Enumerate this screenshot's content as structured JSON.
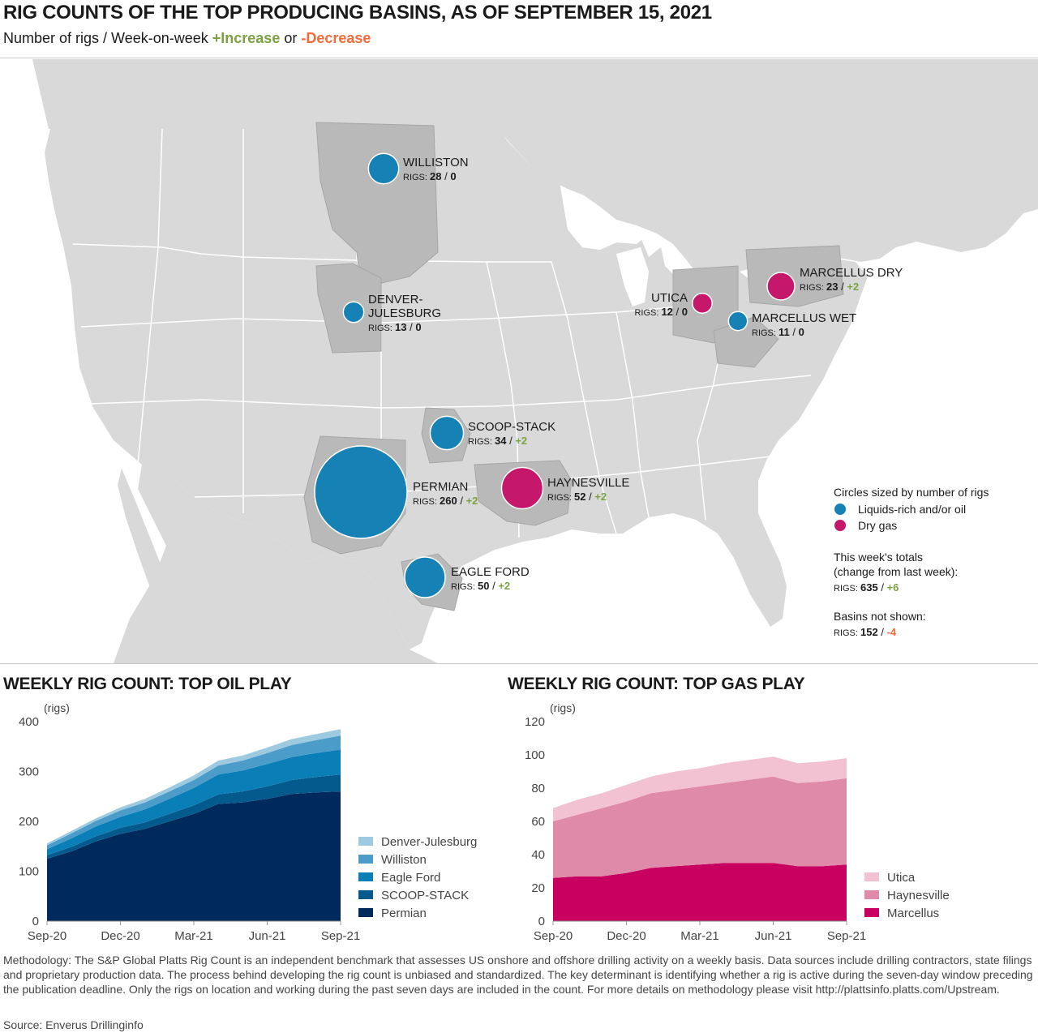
{
  "header": {
    "title": "RIG COUNTS OF THE TOP PRODUCING BASINS, AS OF SEPTEMBER 15, 2021",
    "subtitle_prefix": "Number of rigs / Week-on-week ",
    "subtitle_increase": "+Increase",
    "subtitle_or": " or ",
    "subtitle_decrease": "-Decrease"
  },
  "colors": {
    "liquids": "#1681b5",
    "dry_gas": "#c6186a",
    "increase": "#7ba23f",
    "decrease": "#f26b3a",
    "land": "#d9d9d9",
    "basin": "#b9b9b9"
  },
  "map": {
    "basins": [
      {
        "name": "WILLISTON",
        "line2": "",
        "rigs": "28",
        "change": "0",
        "type": "liquids"
      },
      {
        "name": "DENVER-",
        "line2": "JULESBURG",
        "rigs": "13",
        "change": "0",
        "type": "liquids"
      },
      {
        "name": "SCOOP-STACK",
        "line2": "",
        "rigs": "34",
        "change": "+2",
        "type": "liquids"
      },
      {
        "name": "PERMIAN",
        "line2": "",
        "rigs": "260",
        "change": "+2",
        "type": "liquids"
      },
      {
        "name": "HAYNESVILLE",
        "line2": "",
        "rigs": "52",
        "change": "+2",
        "type": "dry_gas"
      },
      {
        "name": "EAGLE FORD",
        "line2": "",
        "rigs": "50",
        "change": "+2",
        "type": "liquids"
      },
      {
        "name": "UTICA",
        "line2": "",
        "rigs": "12",
        "change": "0",
        "type": "dry_gas"
      },
      {
        "name": "MARCELLUS DRY",
        "line2": "",
        "rigs": "23",
        "change": "+2",
        "type": "dry_gas"
      },
      {
        "name": "MARCELLUS WET",
        "line2": "",
        "rigs": "11",
        "change": "0",
        "type": "liquids"
      }
    ],
    "rigs_prefix": "RIGS:",
    "legend": {
      "title": "Circles sized by number of rigs",
      "liquids": "Liquids-rich and/or oil",
      "dry_gas": "Dry gas",
      "totals_line1": "This week's totals",
      "totals_line2": "(change from last week):",
      "totals_rigs": "635",
      "totals_change": "+6",
      "not_shown_title": "Basins not shown:",
      "not_shown_rigs": "152",
      "not_shown_change": "-4"
    }
  },
  "chart_data": [
    {
      "type": "area",
      "stacked": true,
      "title": "WEEKLY RIG COUNT: TOP OIL PLAY",
      "ylabel": "(rigs)",
      "ylim": [
        0,
        400
      ],
      "yticks": [
        0,
        100,
        200,
        300,
        400
      ],
      "xticks": [
        "Sep-20",
        "Dec-20",
        "Mar-21",
        "Jun-21",
        "Sep-21"
      ],
      "x": [
        "Sep-20",
        "Oct-20",
        "Nov-20",
        "Dec-20",
        "Jan-21",
        "Feb-21",
        "Mar-21",
        "Apr-21",
        "May-21",
        "Jun-21",
        "Jul-21",
        "Aug-21",
        "Sep-21"
      ],
      "series": [
        {
          "name": "Permian",
          "color": "#002a5c",
          "values": [
            125,
            140,
            160,
            175,
            185,
            200,
            215,
            235,
            238,
            245,
            255,
            258,
            260
          ]
        },
        {
          "name": "SCOOP-STACK",
          "color": "#045a8d",
          "values": [
            7,
            9,
            10,
            12,
            13,
            15,
            17,
            19,
            22,
            25,
            28,
            31,
            34
          ]
        },
        {
          "name": "Eagle Ford",
          "color": "#0a7fb7",
          "values": [
            12,
            17,
            20,
            22,
            26,
            30,
            35,
            40,
            42,
            45,
            46,
            48,
            50
          ]
        },
        {
          "name": "Williston",
          "color": "#4b9cc8",
          "values": [
            8,
            10,
            11,
            13,
            14,
            15,
            16,
            18,
            20,
            22,
            24,
            26,
            28
          ]
        },
        {
          "name": "Denver-Julesburg",
          "color": "#9ecae1",
          "values": [
            4,
            5,
            5,
            6,
            7,
            8,
            9,
            10,
            10,
            11,
            12,
            12,
            13
          ]
        }
      ]
    },
    {
      "type": "area",
      "stacked": true,
      "title": "WEEKLY RIG COUNT: TOP GAS PLAY",
      "ylabel": "(rigs)",
      "ylim": [
        0,
        120
      ],
      "yticks": [
        0,
        20,
        40,
        60,
        80,
        100,
        120
      ],
      "xticks": [
        "Sep-20",
        "Dec-20",
        "Mar-21",
        "Jun-21",
        "Sep-21"
      ],
      "x": [
        "Sep-20",
        "Oct-20",
        "Nov-20",
        "Dec-20",
        "Jan-21",
        "Feb-21",
        "Mar-21",
        "Apr-21",
        "May-21",
        "Jun-21",
        "Jul-21",
        "Aug-21",
        "Sep-21"
      ],
      "series": [
        {
          "name": "Marcellus",
          "color": "#c8005f",
          "values": [
            26,
            27,
            27,
            29,
            32,
            33,
            34,
            35,
            35,
            35,
            33,
            33,
            34
          ]
        },
        {
          "name": "Haynesville",
          "color": "#df8aa8",
          "values": [
            34,
            37,
            41,
            43,
            45,
            46,
            47,
            48,
            50,
            52,
            50,
            51,
            52
          ]
        },
        {
          "name": "Utica",
          "color": "#f2c2d2",
          "values": [
            8,
            9,
            9,
            10,
            10,
            11,
            11,
            12,
            12,
            12,
            12,
            12,
            12
          ]
        }
      ]
    }
  ],
  "footer": {
    "methodology": "Methodology: The S&P Global Platts Rig Count is an independent benchmark that assesses US onshore and offshore drilling activity on a weekly basis. Data sources include drilling contractors, state filings and proprietary production data. The process behind developing the rig count is unbiased and standardized. The key determinant is identifying whether a rig is active during the seven-day window preceding the publication deadline. Only the rigs on location and working during the past seven days are included in the count. For more details on methodology please visit http://plattsinfo.platts.com/Upstream.",
    "source": "Source: Enverus Drillinginfo"
  }
}
